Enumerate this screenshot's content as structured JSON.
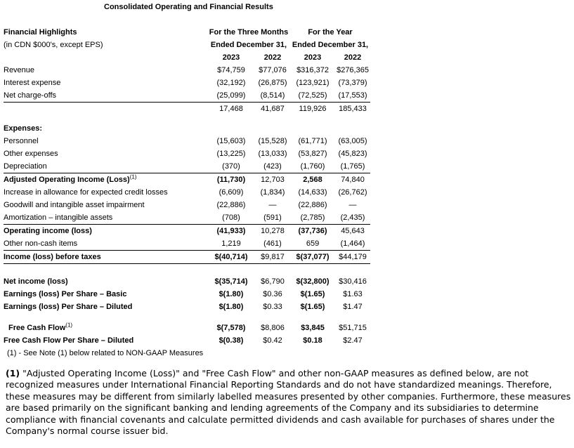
{
  "title": "Consolidated Operating and Financial Results",
  "table": {
    "header": {
      "col_title": "Financial Highlights",
      "col_subtitle": "(in CDN $000's, except EPS)",
      "group1_line1": "For the Three Months",
      "group1_line2": "Ended December 31,",
      "group2_line1": "For the Year",
      "group2_line2": "Ended December 31,",
      "years": [
        "2023",
        "2022",
        "2023",
        "2022"
      ]
    },
    "rows": [
      {
        "label": "Revenue",
        "values": [
          "$74,759",
          "$77,076",
          "$316,372",
          "$276,365"
        ]
      },
      {
        "label": "Interest expense",
        "values": [
          "(32,192)",
          "(26,875)",
          "(123,921)",
          "(73,379)"
        ]
      },
      {
        "label": "Net charge-offs",
        "values": [
          "(25,099)",
          "(8,514)",
          "(72,525)",
          "(17,553)"
        ],
        "rule_below": true
      },
      {
        "label": "",
        "values": [
          "17,468",
          "41,687",
          "119,926",
          "185,433"
        ]
      },
      {
        "label": "Expenses:",
        "section": true,
        "gap_before": 10,
        "values": [
          "",
          "",
          "",
          ""
        ]
      },
      {
        "label": "Personnel",
        "values": [
          "(15,603)",
          "(15,528)",
          "(61,771)",
          "(63,005)"
        ]
      },
      {
        "label": "Other expenses",
        "values": [
          "(13,225)",
          "(13,033)",
          "(53,827)",
          "(45,823)"
        ]
      },
      {
        "label": "Depreciation",
        "values": [
          "(370)",
          "(423)",
          "(1,760)",
          "(1,765)"
        ],
        "rule_below": true
      },
      {
        "label": "Adjusted Operating Income (Loss)",
        "sup": "(1)",
        "emphasis": true,
        "values": [
          "(11,730)",
          "12,703",
          "2,568",
          "74,840"
        ]
      },
      {
        "label": "Increase in allowance for expected credit losses",
        "values": [
          "(6,609)",
          "(1,834)",
          "(14,633)",
          "(26,762)"
        ]
      },
      {
        "label": "Goodwill and intangible asset impairment",
        "values": [
          "(22,886)",
          "—",
          "(22,886)",
          "—"
        ]
      },
      {
        "label": "Amortization – intangible assets",
        "values": [
          "(708)",
          "(591)",
          "(2,785)",
          "(2,435)"
        ],
        "rule_below": true
      },
      {
        "label": "Operating income (loss)",
        "emphasis": true,
        "values": [
          "(41,933)",
          "10,278",
          "(37,736)",
          "45,643"
        ]
      },
      {
        "label": "Other non-cash items",
        "values": [
          "1,219",
          "(461)",
          "659",
          "(1,464)"
        ],
        "rule_below": true
      },
      {
        "label": "Income (loss) before taxes",
        "emphasis": true,
        "rule_below": true,
        "values": [
          "$(40,714)",
          "$9,817",
          "$(37,077)",
          "$44,179"
        ]
      },
      {
        "label": "Net income (loss)",
        "emphasis": true,
        "gap_before": 16,
        "values": [
          "$(35,714)",
          "$6,790",
          "$(32,800)",
          "$30,416"
        ]
      },
      {
        "label": "Earnings (loss) Per Share – Basic",
        "emphasis": true,
        "values": [
          "$(1.80)",
          "$0.36",
          "$(1.65)",
          "$1.63"
        ]
      },
      {
        "label": "Earnings (loss) Per Share – Diluted",
        "emphasis": true,
        "values": [
          "$(1.80)",
          "$0.33",
          "$(1.65)",
          "$1.47"
        ]
      },
      {
        "label": "Free Cash Flow",
        "sup": "(1)",
        "emphasis": true,
        "indent": true,
        "gap_before": 12,
        "values": [
          "$(7,578)",
          "$8,806",
          "$3,845",
          "$51,715"
        ]
      },
      {
        "label": "Free Cash Flow Per Share – Diluted",
        "emphasis": true,
        "values": [
          "$(0.38)",
          "$0.42",
          "$0.18",
          "$2.47"
        ]
      }
    ],
    "footnote": "(1)  - See Note (1) below related to NON-GAAP Measures"
  },
  "note": {
    "prefix": "(1)",
    "text": "\"Adjusted Operating Income (Loss)\" and \"Free Cash Flow\" and other non-GAAP measures as defined below, are not recognized measures under International Financial Reporting Standards and do not have standardized meanings. Therefore, these measures may be different from similarly labelled measures presented by other companies. Furthermore, these measures are based primarily on the significant banking and lending agreements of the Company and its subsidiaries to determine compliance with financial covenants and calculate permitted dividends and cash available for purchases of shares under the Company's normal course issuer bid."
  }
}
